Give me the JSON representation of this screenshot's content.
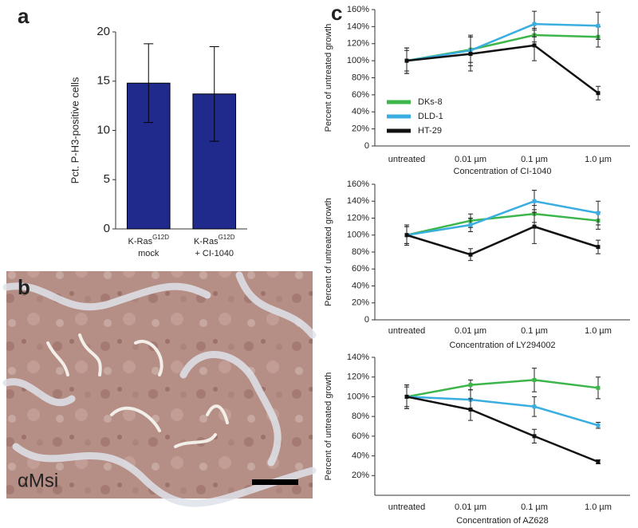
{
  "chart_data": [
    {
      "type": "bar",
      "panel": "a",
      "ylabel": "Pct. P-H3-positive cells",
      "categories": [
        [
          "K-Ras",
          "G12D",
          "mock"
        ],
        [
          "K-Ras",
          "G12D",
          "+ CI-1040"
        ]
      ],
      "values": [
        14.8,
        13.7
      ],
      "errors": [
        4.0,
        4.8
      ],
      "color": "#1f2a8c",
      "ylim": [
        0,
        20
      ],
      "yticks": [
        0,
        5,
        10,
        15,
        20
      ]
    },
    {
      "type": "line",
      "panel": "c",
      "ylabel": "Percent of untreated growth",
      "xlabel": "Concentration of CI-1040",
      "categories": [
        "untreated",
        "0.01 µm",
        "0.1 µm",
        "1.0 µm"
      ],
      "ylim": [
        0,
        160
      ],
      "yticks": [
        0,
        {
          "value": 20,
          "label": "20%"
        },
        {
          "value": 40,
          "label": "40%"
        },
        {
          "value": 60,
          "label": "60%"
        },
        {
          "value": 80,
          "label": "80%"
        },
        {
          "value": 100,
          "label": "100%"
        },
        {
          "value": 120,
          "label": "120%"
        },
        {
          "value": 140,
          "label": "140%"
        },
        {
          "value": 160,
          "label": "160%"
        }
      ],
      "legend": true,
      "series": [
        {
          "name": "DKs-8",
          "color": "#3cb54a",
          "values": [
            100,
            113,
            130,
            128
          ],
          "errors": [
            12,
            15,
            8,
            12
          ]
        },
        {
          "name": "DLD-1",
          "color": "#3aaee0",
          "values": [
            100,
            112,
            143,
            141
          ],
          "errors": [
            15,
            18,
            15,
            16
          ]
        },
        {
          "name": "HT-29",
          "color": "#111111",
          "values": [
            100,
            108,
            118,
            62
          ],
          "errors": [
            15,
            20,
            18,
            8
          ]
        }
      ]
    },
    {
      "type": "line",
      "ylabel": "Percent of untreated growth",
      "xlabel": "Concentration of LY294002",
      "categories": [
        "untreated",
        "0.01 µm",
        "0.1 µm",
        "1.0 µm"
      ],
      "ylim": [
        0,
        160
      ],
      "yticks": [
        0,
        {
          "value": 20,
          "label": "20%"
        },
        {
          "value": 40,
          "label": "40%"
        },
        {
          "value": 60,
          "label": "60%"
        },
        {
          "value": 80,
          "label": "80%"
        },
        {
          "value": 100,
          "label": "100%"
        },
        {
          "value": 120,
          "label": "120%"
        },
        {
          "value": 140,
          "label": "140%"
        },
        {
          "value": 160,
          "label": "160%"
        }
      ],
      "series": [
        {
          "color": "#3cb54a",
          "values": [
            100,
            117,
            125,
            117
          ],
          "errors": [
            10,
            8,
            10,
            10
          ]
        },
        {
          "color": "#3aaee0",
          "values": [
            100,
            112,
            140,
            126
          ],
          "errors": [
            10,
            8,
            13,
            14
          ]
        },
        {
          "color": "#111111",
          "values": [
            100,
            77,
            110,
            86
          ],
          "errors": [
            12,
            7,
            20,
            8
          ]
        }
      ]
    },
    {
      "type": "line",
      "ylabel": "Percent of untreated growth",
      "xlabel": "Concentration of AZ628",
      "categories": [
        "untreated",
        "0.01 µm",
        "0.1 µm",
        "1.0 µm"
      ],
      "ylim": [
        0,
        140
      ],
      "yticks": [
        {
          "value": 20,
          "label": "20%"
        },
        {
          "value": 40,
          "label": "40%"
        },
        {
          "value": 60,
          "label": "60%"
        },
        {
          "value": 80,
          "label": "80%"
        },
        {
          "value": 100,
          "label": "100%"
        },
        {
          "value": 120,
          "label": "120%"
        },
        {
          "value": 140,
          "label": "140%"
        }
      ],
      "series": [
        {
          "color": "#3cb54a",
          "values": [
            100,
            112,
            117,
            109
          ],
          "errors": [
            12,
            5,
            12,
            11
          ]
        },
        {
          "color": "#3aaee0",
          "values": [
            100,
            97,
            90,
            71
          ],
          "errors": [
            10,
            10,
            10,
            3
          ]
        },
        {
          "color": "#111111",
          "values": [
            100,
            87,
            60,
            34
          ],
          "errors": [
            12,
            11,
            7,
            2
          ]
        }
      ]
    }
  ],
  "image_panel": {
    "panel": "b",
    "label": "αMsi"
  }
}
